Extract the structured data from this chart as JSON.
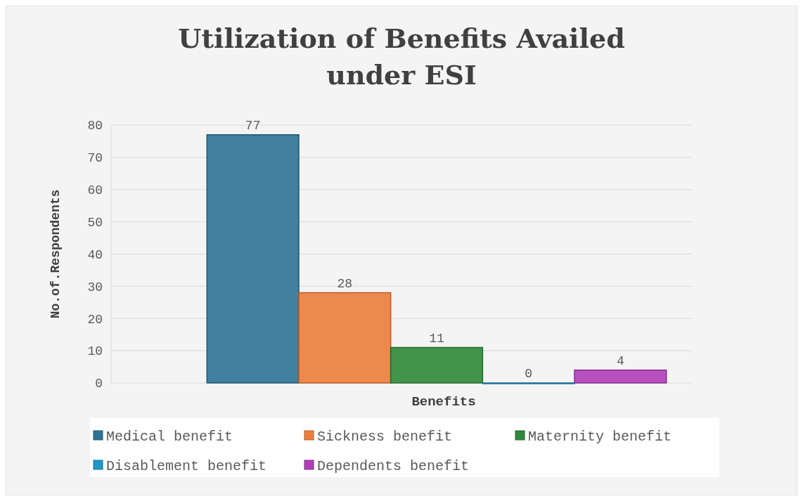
{
  "chart_data": {
    "type": "bar",
    "title": "Utilization of Benefits Availed under ESI",
    "xlabel": "Benefits",
    "ylabel": "No.of.Respondents",
    "categories": [
      null
    ],
    "series": [
      {
        "name": "Medical benefit",
        "color": "#2e7396",
        "values": [
          77
        ]
      },
      {
        "name": "Sickness benefit",
        "color": "#ed7d3a",
        "values": [
          28
        ]
      },
      {
        "name": "Maternity benefit",
        "color": "#2f8a3b",
        "values": [
          11
        ]
      },
      {
        "name": "Disablement benefit",
        "color": "#1f98c9",
        "values": [
          0
        ]
      },
      {
        "name": "Dependents benefit",
        "color": "#b13db9",
        "values": [
          4
        ]
      }
    ],
    "ylim": [
      0,
      80
    ],
    "yticks": [
      0,
      10,
      20,
      30,
      40,
      50,
      60,
      70,
      80
    ],
    "grid": "y",
    "legend": "bottom",
    "data_labels": true
  }
}
